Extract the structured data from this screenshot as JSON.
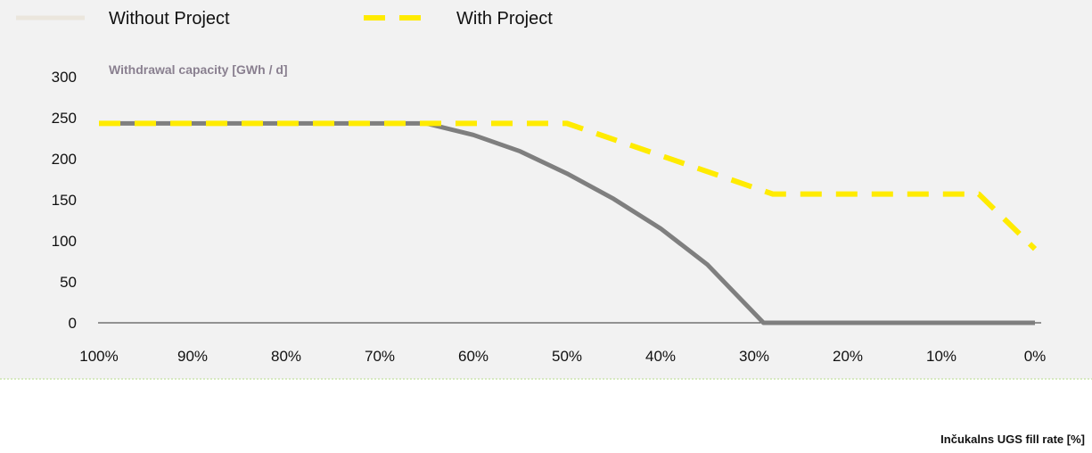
{
  "chart_data": {
    "type": "line",
    "title": "",
    "ylabel": "Withdrawal capacity [GWh / d]",
    "xlabel": "Inčukalns UGS fill rate [%]",
    "x_ticks": [
      "100%",
      "90%",
      "80%",
      "70%",
      "60%",
      "50%",
      "40%",
      "30%",
      "20%",
      "10%",
      "0%"
    ],
    "x_range": [
      100,
      0
    ],
    "ylim": [
      0,
      300
    ],
    "y_ticks": [
      0,
      50,
      100,
      150,
      200,
      250,
      300
    ],
    "grid": false,
    "legend_placement": "top",
    "background_color": "#f2f2f2",
    "series": [
      {
        "name": "Without Project",
        "color": "#7f7f7f",
        "legend_color": "#ebe6dd",
        "style": "solid",
        "points": [
          [
            100,
            243
          ],
          [
            65,
            243
          ],
          [
            60,
            229
          ],
          [
            55,
            209
          ],
          [
            50,
            182
          ],
          [
            45,
            151
          ],
          [
            40,
            115
          ],
          [
            35,
            71
          ],
          [
            29,
            0
          ],
          [
            0,
            0
          ]
        ]
      },
      {
        "name": "With Project",
        "color": "#ffeb00",
        "legend_color": "#ffeb00",
        "style": "dashed",
        "points": [
          [
            100,
            243
          ],
          [
            50,
            243
          ],
          [
            28,
            157
          ],
          [
            6,
            157
          ],
          [
            0,
            90
          ]
        ]
      }
    ]
  }
}
